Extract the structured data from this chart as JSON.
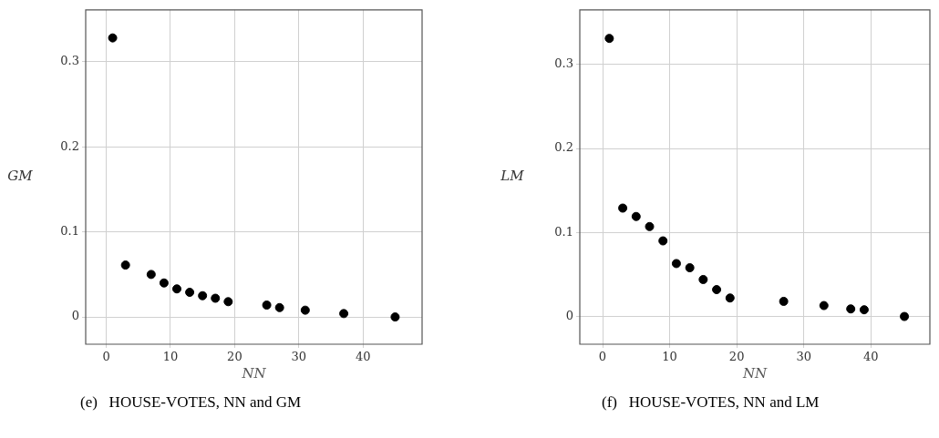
{
  "chart_data": [
    {
      "type": "scatter",
      "xlabel": "NN",
      "ylabel": "GM",
      "annotations": [
        "(e)   HOUSE-VOTES, NN and GM"
      ],
      "series": [
        {
          "color": "#000000",
          "x": [
            1,
            3,
            7,
            9,
            11,
            13,
            15,
            17,
            19,
            25,
            27,
            31,
            37,
            45
          ],
          "values": [
            0.328,
            0.061,
            0.05,
            0.04,
            0.033,
            0.029,
            0.025,
            0.022,
            0.018,
            0.014,
            0.011,
            0.008,
            0.004,
            0.0
          ]
        }
      ],
      "xlim": [
        -3.2,
        49.2
      ],
      "ylim": [
        -0.032,
        0.361
      ],
      "xticks": [
        0,
        10,
        20,
        30,
        40
      ],
      "yticks": [
        0,
        0.1,
        0.2,
        0.3
      ],
      "grid": true,
      "legend": false,
      "marker": "circle"
    },
    {
      "type": "scatter",
      "xlabel": "NN",
      "ylabel": "LM",
      "annotations": [
        "(f)   HOUSE-VOTES, NN and LM"
      ],
      "series": [
        {
          "color": "#000000",
          "x": [
            1,
            3,
            5,
            7,
            9,
            11,
            13,
            15,
            17,
            19,
            27,
            33,
            37,
            39,
            45
          ],
          "values": [
            0.331,
            0.129,
            0.119,
            0.107,
            0.09,
            0.063,
            0.058,
            0.044,
            0.032,
            0.022,
            0.018,
            0.013,
            0.009,
            0.008,
            0.0
          ]
        }
      ],
      "xlim": [
        -3.4,
        48.8
      ],
      "ylim": [
        -0.033,
        0.365
      ],
      "xticks": [
        0,
        10,
        20,
        30,
        40
      ],
      "yticks": [
        0,
        0.1,
        0.2,
        0.3
      ],
      "grid": true,
      "legend": false,
      "marker": "circle"
    }
  ]
}
